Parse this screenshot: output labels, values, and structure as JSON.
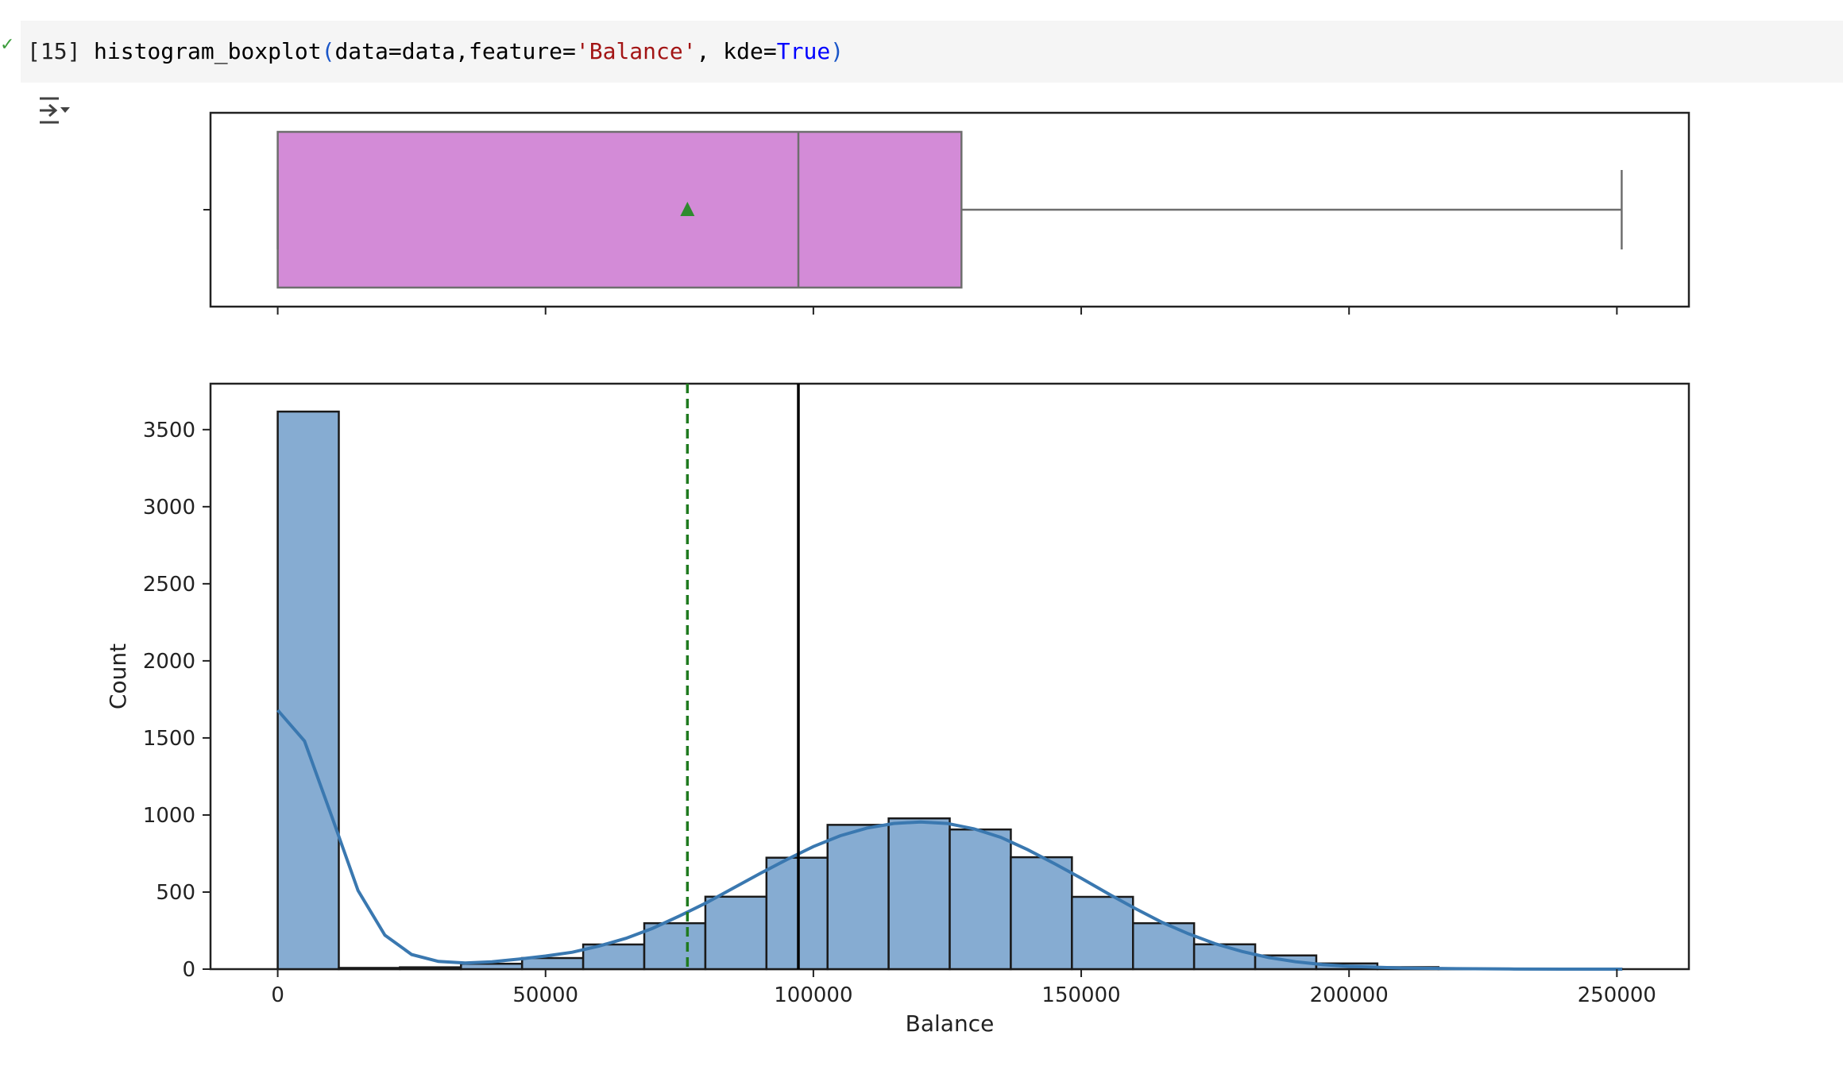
{
  "cell": {
    "execution_count": "[15]",
    "code": {
      "fn": "histogram_boxplot",
      "open_paren": "(",
      "arg1": "data=data,feature=",
      "str": "'Balance'",
      "arg2": ", kde=",
      "kw": "True",
      "close_paren": ")"
    },
    "status_icon": "check-icon",
    "output_icon": "collapse-output-icon"
  },
  "colors": {
    "box_fill": "#d38bd7",
    "hist_fill": "#86acd2",
    "kde_line": "#3a78b0",
    "mean_line": "#1f7a1f",
    "median_line": "#000000"
  },
  "chart_data": [
    {
      "type": "box",
      "orientation": "horizontal",
      "feature": "Balance",
      "min": 0,
      "q1": 0,
      "median": 97199,
      "q3": 127644,
      "max": 250898,
      "mean": 76486,
      "show_mean": true,
      "xlim": [
        -12545,
        263443
      ]
    },
    {
      "type": "bar",
      "subtype": "histogram",
      "xlabel": "Balance",
      "ylabel": "Count",
      "bin_width": 11405,
      "bin_starts": [
        0,
        11405,
        22810,
        34215,
        45620,
        57025,
        68430,
        79835,
        91240,
        102645,
        114050,
        125455,
        136860,
        148265,
        159670,
        171075,
        182480,
        193885,
        205290,
        216695,
        228100,
        239505
      ],
      "counts": [
        3617,
        8,
        12,
        35,
        72,
        160,
        298,
        470,
        723,
        936,
        978,
        906,
        726,
        469,
        298,
        161,
        89,
        37,
        13,
        4,
        2,
        1
      ],
      "kde": {
        "x": [
          0,
          5000,
          10000,
          15000,
          20000,
          25000,
          30000,
          35000,
          40000,
          45000,
          50000,
          55000,
          60000,
          65000,
          70000,
          75000,
          80000,
          85000,
          90000,
          95000,
          100000,
          105000,
          110000,
          115000,
          120000,
          125000,
          130000,
          135000,
          140000,
          145000,
          150000,
          155000,
          160000,
          165000,
          170000,
          175000,
          180000,
          185000,
          190000,
          195000,
          200000,
          210000,
          220000,
          230000,
          240000,
          251000
        ],
        "y": [
          1680,
          1480,
          1000,
          510,
          220,
          95,
          50,
          40,
          48,
          65,
          85,
          110,
          150,
          200,
          265,
          345,
          430,
          525,
          620,
          710,
          795,
          865,
          915,
          945,
          955,
          945,
          910,
          855,
          775,
          685,
          590,
          490,
          395,
          305,
          230,
          165,
          115,
          75,
          48,
          30,
          18,
          7,
          3,
          1,
          0,
          0
        ]
      },
      "mean_line": 76486,
      "median_line": 97199,
      "xlim": [
        -12545,
        263443
      ],
      "ylim": [
        0,
        3798
      ],
      "xticks": [
        0,
        50000,
        100000,
        150000,
        200000,
        250000
      ],
      "yticks": [
        0,
        500,
        1000,
        1500,
        2000,
        2500,
        3000,
        3500
      ],
      "grid": false
    }
  ]
}
